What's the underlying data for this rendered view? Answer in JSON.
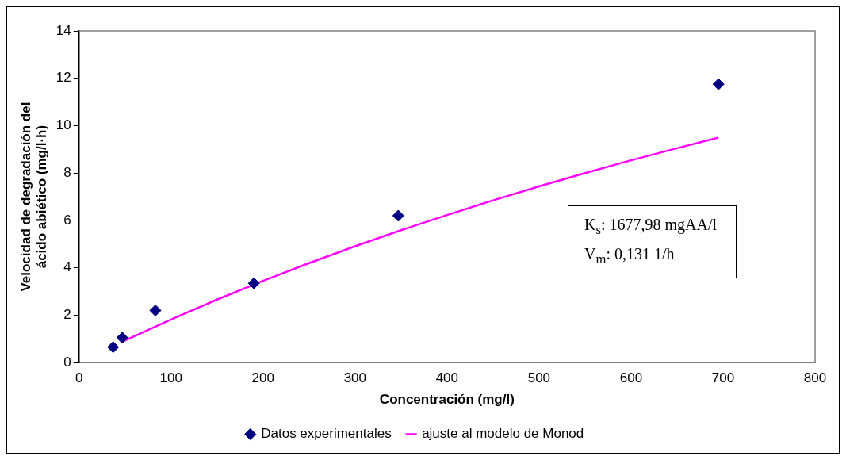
{
  "chart_data": {
    "type": "scatter",
    "xlabel": "Concentración (mg/l)",
    "ylabel": "Velocidad de degradación del ácido abiético (mg/l·h)",
    "xlim": [
      0,
      800
    ],
    "xticks": [
      0,
      100,
      200,
      300,
      400,
      500,
      600,
      700,
      800
    ],
    "ylim": [
      0,
      14
    ],
    "yticks": [
      0,
      2,
      4,
      6,
      8,
      10,
      12,
      14
    ],
    "grid": false,
    "legend": "bottom",
    "annotations": [
      "K$_{s}$: 1677,98 mgAA/l",
      "V$_{m}$: 0,131 1/h"
    ],
    "series": [
      {
        "name": "Datos experimentales",
        "color": "#000080",
        "marker": "diamond",
        "x": [
          37,
          47,
          83,
          190,
          347,
          695
        ],
        "values": [
          0.65,
          1.05,
          2.2,
          3.35,
          6.2,
          11.75
        ]
      },
      {
        "name": "ajuste al modelo de Monod",
        "type": "line",
        "color": "#ff00ff",
        "marker": "none",
        "line_style": "solid",
        "x": [
          47,
          100,
          150,
          200,
          250,
          300,
          350,
          400,
          450,
          500,
          550,
          600,
          650,
          695
        ],
        "values": [
          0.88,
          1.82,
          2.66,
          3.45,
          4.2,
          4.91,
          5.59,
          6.23,
          6.85,
          7.44,
          8.0,
          8.54,
          9.05,
          9.5
        ]
      }
    ]
  }
}
